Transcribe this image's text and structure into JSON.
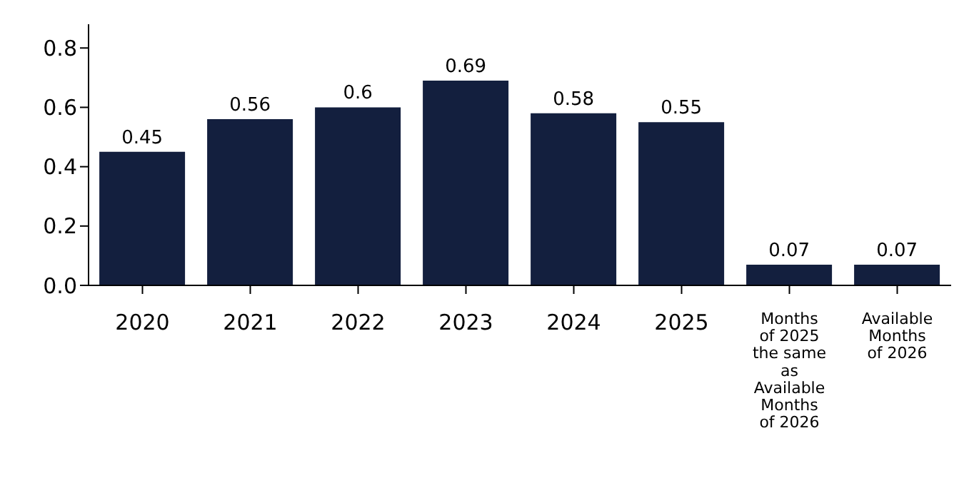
{
  "chart_data": {
    "type": "bar",
    "categories": [
      "2020",
      "2021",
      "2022",
      "2023",
      "2024",
      "2025",
      "Months of 2025 the same as Available Months of 2026",
      "Available Months of 2026"
    ],
    "values": [
      0.45,
      0.56,
      0.6,
      0.69,
      0.58,
      0.55,
      0.07,
      0.07
    ],
    "color": "#131f3e",
    "ylim": [
      0,
      0.88
    ],
    "yticks": [
      {
        "value": 0,
        "label": "0.0"
      },
      0.2,
      0.4,
      0.6,
      0.8
    ],
    "data_labels": true,
    "grid": false,
    "legend": false
  }
}
